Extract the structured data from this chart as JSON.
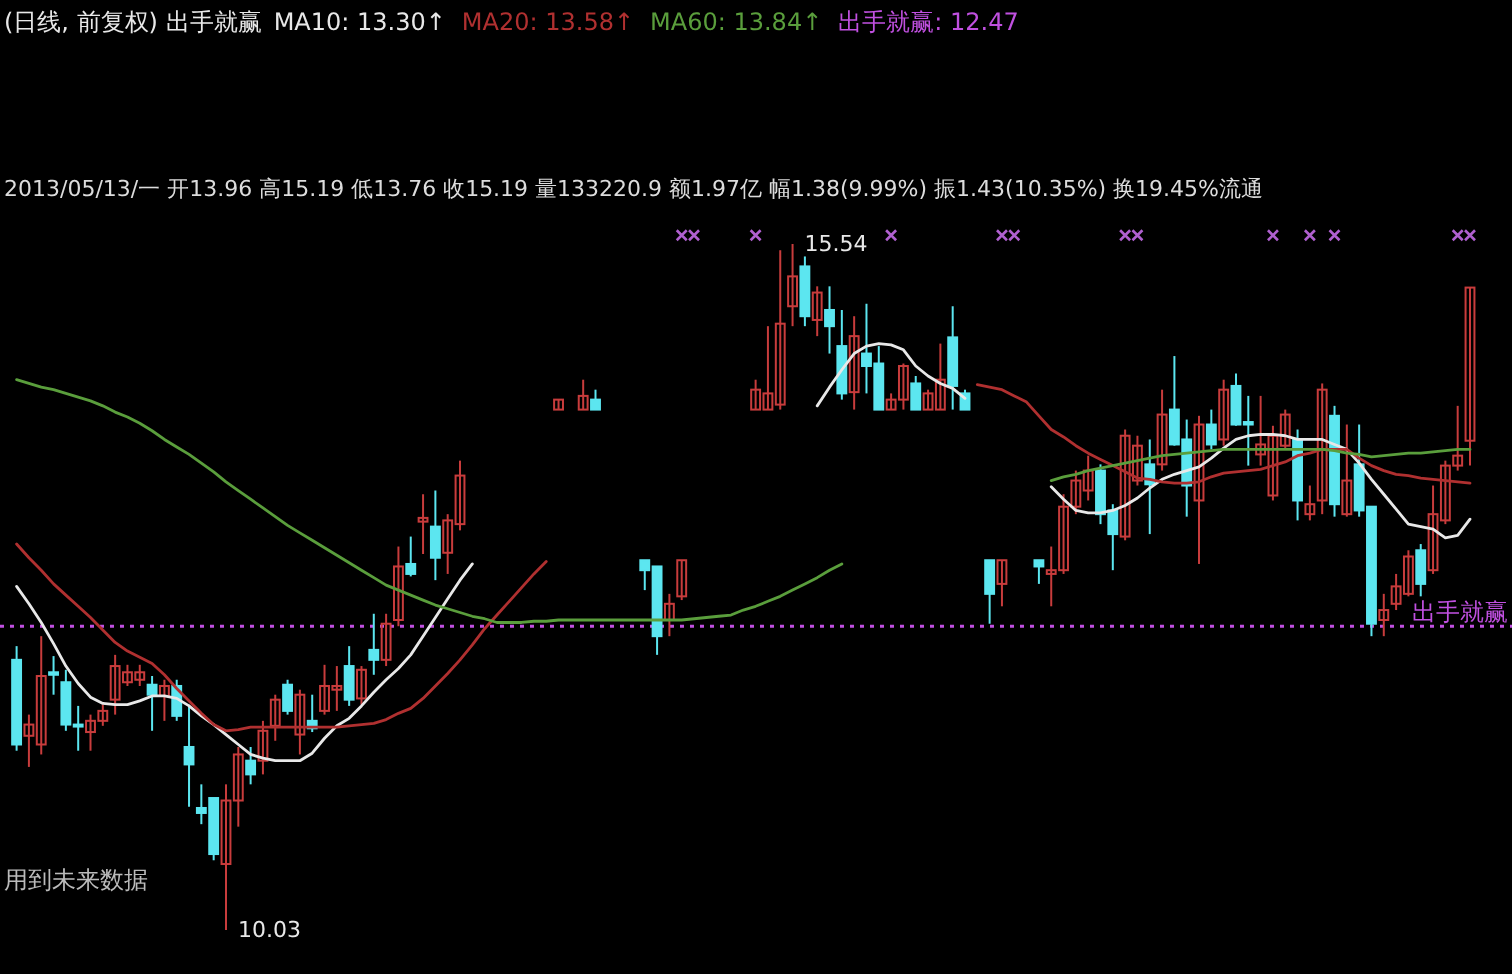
{
  "chart_data": {
    "type": "candlestick",
    "title": "(日线, 前复权) 出手就赢",
    "subtitle": "2013/05/13/一 开13.96 高15.19 低13.76 收15.19 量133220.9 额1.97亿 幅1.38(9.99%) 振1.43(10.35%) 换19.45%流通",
    "categories": [
      null,
      null,
      null,
      null,
      null,
      null,
      null,
      null,
      null,
      null,
      null,
      null,
      null,
      null,
      null,
      null,
      null,
      null,
      null,
      null,
      null,
      null,
      null,
      null,
      null,
      null,
      null,
      null,
      null,
      null,
      null,
      null,
      null,
      null,
      null,
      null,
      null,
      null,
      null,
      null,
      null,
      null,
      null,
      null,
      null,
      null,
      null,
      null,
      null,
      null,
      null,
      null,
      null,
      null,
      null,
      null,
      null,
      null,
      null,
      null,
      null,
      null,
      null,
      null,
      null,
      null,
      null,
      null,
      null,
      null,
      null,
      null,
      null,
      null,
      null,
      null,
      null,
      null,
      null,
      null,
      null,
      null,
      null,
      null,
      null,
      null,
      null,
      null,
      null,
      null,
      null,
      null,
      null,
      null,
      null,
      null,
      null,
      null,
      null,
      null,
      null,
      null,
      null,
      null,
      null,
      null,
      null,
      null,
      null,
      null,
      null,
      null,
      null,
      null,
      null,
      null,
      null,
      null,
      null
    ],
    "ohlc": [
      [
        12.2,
        12.31,
        11.47,
        11.52
      ],
      [
        11.59,
        11.76,
        11.34,
        11.68
      ],
      [
        11.52,
        12.39,
        11.44,
        12.07
      ],
      [
        12.1,
        12.23,
        11.92,
        12.08
      ],
      [
        12.02,
        12.12,
        11.63,
        11.68
      ],
      [
        11.68,
        11.83,
        11.47,
        11.67
      ],
      [
        11.62,
        11.76,
        11.47,
        11.71
      ],
      [
        11.71,
        11.84,
        11.67,
        11.79
      ],
      [
        11.88,
        12.24,
        11.76,
        12.15
      ],
      [
        12.02,
        12.16,
        11.99,
        12.1
      ],
      [
        12.04,
        12.16,
        11.99,
        12.1
      ],
      [
        12.0,
        12.07,
        11.63,
        11.92
      ],
      [
        11.91,
        12.04,
        11.71,
        11.99
      ],
      [
        11.99,
        12.04,
        11.71,
        11.75
      ],
      [
        11.5,
        11.84,
        11.02,
        11.36
      ],
      [
        11.01,
        11.2,
        10.88,
        10.97
      ],
      [
        11.09,
        11.09,
        10.59,
        10.64
      ],
      [
        10.56,
        11.2,
        10.03,
        11.07
      ],
      [
        11.07,
        11.5,
        10.86,
        11.44
      ],
      [
        11.39,
        11.5,
        11.2,
        11.28
      ],
      [
        11.39,
        11.71,
        11.28,
        11.63
      ],
      [
        11.67,
        11.92,
        11.55,
        11.88
      ],
      [
        12.0,
        12.04,
        11.76,
        11.79
      ],
      [
        11.6,
        11.96,
        11.44,
        11.92
      ],
      [
        11.71,
        11.92,
        11.62,
        11.65
      ],
      [
        11.79,
        12.16,
        11.76,
        11.99
      ],
      [
        11.96,
        12.15,
        11.79,
        11.99
      ],
      [
        12.15,
        12.31,
        11.83,
        11.88
      ],
      [
        11.89,
        12.15,
        11.84,
        12.12
      ],
      [
        12.28,
        12.57,
        12.08,
        12.2
      ],
      [
        12.2,
        12.57,
        12.15,
        12.49
      ],
      [
        12.52,
        13.11,
        12.47,
        12.95
      ],
      [
        12.97,
        13.19,
        12.87,
        12.89
      ],
      [
        13.31,
        13.53,
        13.05,
        13.34
      ],
      [
        13.27,
        13.56,
        12.84,
        13.02
      ],
      [
        13.06,
        13.37,
        12.89,
        13.32
      ],
      [
        13.29,
        13.8,
        13.24,
        13.68
      ],
      null,
      null,
      null,
      null,
      null,
      null,
      null,
      [
        14.21,
        14.29,
        14.21,
        14.29
      ],
      null,
      [
        14.21,
        14.45,
        14.21,
        14.32
      ],
      [
        14.29,
        14.37,
        14.21,
        14.21
      ],
      null,
      null,
      null,
      [
        13.0,
        13.0,
        12.76,
        12.92
      ],
      [
        12.95,
        12.95,
        12.24,
        12.39
      ],
      [
        12.52,
        12.73,
        12.39,
        12.65
      ],
      [
        12.71,
        13.0,
        12.68,
        13.0
      ],
      null,
      null,
      null,
      null,
      null,
      [
        14.21,
        14.45,
        14.21,
        14.37
      ],
      [
        14.21,
        14.88,
        14.21,
        14.34
      ],
      [
        14.25,
        15.49,
        14.21,
        14.9
      ],
      [
        15.04,
        15.54,
        14.88,
        15.28
      ],
      [
        15.36,
        15.44,
        14.88,
        14.96
      ],
      [
        14.93,
        15.2,
        14.8,
        15.15
      ],
      [
        15.01,
        15.2,
        14.66,
        14.88
      ],
      [
        14.72,
        15.01,
        14.29,
        14.34
      ],
      [
        14.35,
        14.96,
        14.21,
        14.8
      ],
      [
        14.66,
        15.06,
        14.34,
        14.56
      ],
      [
        14.58,
        14.72,
        14.21,
        14.21
      ],
      [
        14.21,
        14.34,
        14.21,
        14.29
      ],
      [
        14.29,
        14.58,
        14.21,
        14.56
      ],
      [
        14.42,
        14.48,
        14.21,
        14.21
      ],
      [
        14.21,
        14.37,
        14.21,
        14.34
      ],
      [
        14.21,
        14.74,
        14.21,
        14.45
      ],
      [
        14.79,
        15.04,
        14.21,
        14.4
      ],
      [
        14.34,
        14.37,
        14.21,
        14.21
      ],
      null,
      [
        13.0,
        13.0,
        12.49,
        12.73
      ],
      [
        12.81,
        13.0,
        12.63,
        13.0
      ],
      null,
      null,
      [
        13.0,
        13.0,
        12.81,
        12.95
      ],
      [
        12.89,
        13.11,
        12.63,
        12.92
      ],
      [
        12.92,
        13.53,
        12.89,
        13.43
      ],
      [
        13.43,
        13.72,
        13.37,
        13.64
      ],
      [
        13.56,
        13.84,
        13.48,
        13.72
      ],
      [
        13.72,
        13.77,
        13.29,
        13.37
      ],
      [
        13.4,
        13.45,
        12.92,
        13.21
      ],
      [
        13.19,
        14.05,
        13.16,
        14.0
      ],
      [
        13.64,
        14.0,
        13.6,
        13.92
      ],
      [
        13.77,
        13.97,
        13.21,
        13.61
      ],
      [
        13.77,
        14.37,
        13.72,
        14.17
      ],
      [
        14.21,
        14.64,
        13.92,
        13.93
      ],
      [
        13.97,
        14.13,
        13.35,
        13.6
      ],
      [
        13.48,
        14.16,
        12.97,
        14.09
      ],
      [
        14.09,
        14.21,
        13.89,
        13.93
      ],
      [
        13.97,
        14.45,
        13.92,
        14.37
      ],
      [
        14.4,
        14.5,
        14.08,
        14.09
      ],
      [
        14.11,
        14.32,
        13.76,
        14.09
      ],
      [
        13.85,
        14.32,
        13.76,
        13.93
      ],
      [
        13.52,
        14.08,
        13.48,
        14.0
      ],
      [
        13.92,
        14.21,
        13.89,
        14.17
      ],
      [
        13.97,
        14.05,
        13.32,
        13.48
      ],
      [
        13.37,
        13.6,
        13.32,
        13.45
      ],
      [
        13.48,
        14.42,
        13.37,
        14.37
      ],
      [
        14.16,
        14.24,
        13.35,
        13.45
      ],
      [
        13.37,
        14.09,
        13.35,
        13.64
      ],
      [
        13.77,
        14.09,
        13.35,
        13.4
      ],
      [
        13.43,
        13.43,
        12.39,
        12.49
      ],
      [
        12.52,
        12.73,
        12.39,
        12.6
      ],
      [
        12.65,
        12.89,
        12.6,
        12.79
      ],
      [
        12.73,
        13.08,
        12.71,
        13.03
      ],
      [
        13.08,
        13.13,
        12.71,
        12.81
      ],
      [
        12.92,
        13.6,
        12.89,
        13.37
      ],
      [
        13.32,
        13.8,
        13.29,
        13.76
      ],
      [
        13.76,
        14.24,
        13.72,
        13.84
      ],
      [
        13.96,
        15.19,
        13.76,
        15.19
      ]
    ],
    "colors": [
      "#5ce6f0",
      "#c83c3c",
      "#c83c3c",
      "#5ce6f0",
      "#5ce6f0",
      "#5ce6f0",
      "#c83c3c",
      "#c83c3c",
      "#c83c3c",
      "#c83c3c",
      "#c83c3c",
      "#5ce6f0",
      "#c83c3c",
      "#5ce6f0",
      "#5ce6f0",
      "#5ce6f0",
      "#5ce6f0",
      "#c83c3c",
      "#c83c3c",
      "#5ce6f0",
      "#c83c3c",
      "#c83c3c",
      "#5ce6f0",
      "#c83c3c",
      "#5ce6f0",
      "#c83c3c",
      "#c83c3c",
      "#5ce6f0",
      "#c83c3c",
      "#5ce6f0",
      "#c83c3c",
      "#c83c3c",
      "#5ce6f0",
      "#c83c3c",
      "#5ce6f0",
      "#c83c3c",
      "#c83c3c",
      null,
      null,
      null,
      null,
      null,
      null,
      null,
      "#c83c3c",
      null,
      "#c83c3c",
      "#5ce6f0",
      null,
      null,
      null,
      "#5ce6f0",
      "#5ce6f0",
      "#c83c3c",
      "#c83c3c",
      null,
      null,
      null,
      null,
      null,
      "#c83c3c",
      "#c83c3c",
      "#c83c3c",
      "#c83c3c",
      "#5ce6f0",
      "#c83c3c",
      "#5ce6f0",
      "#5ce6f0",
      "#c83c3c",
      "#5ce6f0",
      "#5ce6f0",
      "#c83c3c",
      "#c83c3c",
      "#5ce6f0",
      "#c83c3c",
      "#c83c3c",
      "#5ce6f0",
      "#5ce6f0",
      null,
      "#5ce6f0",
      "#c83c3c",
      null,
      null,
      "#5ce6f0",
      "#c83c3c",
      "#c83c3c",
      "#c83c3c",
      "#c83c3c",
      "#5ce6f0",
      "#5ce6f0",
      "#c83c3c",
      "#c83c3c",
      "#5ce6f0",
      "#c83c3c",
      "#5ce6f0",
      "#5ce6f0",
      "#c83c3c",
      "#5ce6f0",
      "#c83c3c",
      "#5ce6f0",
      "#5ce6f0",
      "#c83c3c",
      "#c83c3c",
      "#c83c3c",
      "#5ce6f0",
      "#c83c3c",
      "#c83c3c",
      "#5ce6f0",
      "#c83c3c",
      "#5ce6f0",
      "#5ce6f0",
      "#c83c3c",
      "#c83c3c",
      "#c83c3c",
      "#5ce6f0",
      "#c83c3c",
      "#c83c3c",
      "#c83c3c",
      "#c83c3c"
    ],
    "series": [
      {
        "name": "MA10: 13.30↑",
        "type": "line",
        "color": "#e8e8e8",
        "values": [
          12.79,
          12.65,
          12.5,
          12.33,
          12.15,
          12.01,
          11.9,
          11.85,
          11.84,
          11.84,
          11.87,
          11.91,
          11.91,
          11.89,
          11.83,
          11.75,
          11.68,
          11.6,
          11.52,
          11.44,
          11.41,
          11.39,
          11.39,
          11.39,
          11.45,
          11.57,
          11.67,
          11.73,
          11.83,
          11.94,
          12.04,
          12.13,
          12.24,
          12.39,
          12.54,
          12.69,
          12.84,
          12.97,
          null,
          null,
          null,
          null,
          null,
          null,
          null,
          null,
          null,
          null,
          null,
          null,
          null,
          null,
          null,
          null,
          null,
          null,
          null,
          null,
          null,
          null,
          null,
          null,
          null,
          null,
          null,
          14.24,
          14.39,
          14.53,
          14.66,
          14.72,
          14.74,
          14.73,
          14.69,
          14.56,
          14.48,
          14.42,
          14.38,
          14.3,
          null,
          null,
          null,
          null,
          null,
          null,
          13.59,
          13.49,
          13.4,
          13.38,
          13.38,
          13.4,
          13.44,
          13.5,
          13.58,
          13.65,
          13.69,
          13.72,
          13.75,
          13.82,
          13.9,
          13.97,
          14.0,
          14.01,
          14.01,
          14.0,
          13.97,
          13.97,
          13.97,
          13.93,
          13.89,
          13.78,
          13.65,
          13.53,
          13.41,
          13.29,
          13.27,
          13.25,
          13.18,
          13.2,
          13.33
        ]
      },
      {
        "name": "MA20: 13.58↑",
        "type": "line",
        "color": "#b03030",
        "values": [
          13.13,
          13.02,
          12.92,
          12.81,
          12.72,
          12.63,
          12.54,
          12.44,
          12.34,
          12.27,
          12.22,
          12.17,
          12.08,
          11.97,
          11.87,
          11.77,
          11.68,
          11.63,
          11.64,
          11.66,
          11.66,
          11.66,
          11.66,
          11.66,
          11.66,
          11.66,
          11.66,
          11.67,
          11.68,
          11.69,
          11.72,
          11.77,
          11.81,
          11.89,
          11.99,
          12.09,
          12.2,
          12.32,
          12.45,
          12.56,
          12.67,
          12.78,
          12.89,
          12.99,
          null,
          null,
          null,
          null,
          null,
          null,
          null,
          null,
          null,
          null,
          null,
          null,
          null,
          null,
          null,
          null,
          null,
          null,
          null,
          null,
          null,
          null,
          null,
          null,
          null,
          null,
          null,
          null,
          null,
          null,
          null,
          null,
          null,
          null,
          14.41,
          14.39,
          14.37,
          14.32,
          14.27,
          14.16,
          14.05,
          13.99,
          13.92,
          13.86,
          13.81,
          13.76,
          13.71,
          13.66,
          13.65,
          13.63,
          13.62,
          13.62,
          13.63,
          13.67,
          13.7,
          13.71,
          13.72,
          13.73,
          13.76,
          13.79,
          13.84,
          13.86,
          13.89,
          13.89,
          13.89,
          13.82,
          13.76,
          13.72,
          13.69,
          13.68,
          13.66,
          13.65,
          13.64,
          13.63,
          13.62
        ]
      },
      {
        "name": "MA60: 13.84↑",
        "type": "line",
        "color": "#5a9e3c",
        "values": [
          14.45,
          14.42,
          14.39,
          14.37,
          14.34,
          14.31,
          14.28,
          14.24,
          14.19,
          14.15,
          14.1,
          14.04,
          13.97,
          13.91,
          13.85,
          13.78,
          13.71,
          13.63,
          13.56,
          13.49,
          13.42,
          13.35,
          13.28,
          13.22,
          13.16,
          13.1,
          13.04,
          12.98,
          12.92,
          12.86,
          12.8,
          12.76,
          12.72,
          12.68,
          12.64,
          12.61,
          12.58,
          12.55,
          12.53,
          12.5,
          12.5,
          12.5,
          12.51,
          12.51,
          12.52,
          12.52,
          12.52,
          12.52,
          12.52,
          12.52,
          12.52,
          12.52,
          12.52,
          12.52,
          12.52,
          12.53,
          12.54,
          12.55,
          12.56,
          12.6,
          12.63,
          12.67,
          12.71,
          12.76,
          12.81,
          12.86,
          12.92,
          12.97,
          null,
          null,
          null,
          null,
          null,
          null,
          null,
          null,
          null,
          null,
          null,
          null,
          null,
          null,
          null,
          null,
          13.64,
          13.67,
          13.69,
          13.72,
          13.74,
          13.76,
          13.78,
          13.8,
          13.82,
          13.84,
          13.85,
          13.86,
          13.87,
          13.88,
          13.89,
          13.89,
          13.89,
          13.89,
          13.89,
          13.89,
          13.89,
          13.89,
          13.89,
          13.88,
          13.86,
          13.85,
          13.83,
          13.84,
          13.85,
          13.86,
          13.86,
          13.87,
          13.88,
          13.89,
          13.89
        ]
      },
      {
        "type": "scatter",
        "color": "#b060d0",
        "marker": "cross",
        "values": [
          null,
          null,
          null,
          null,
          null,
          null,
          null,
          null,
          null,
          null,
          null,
          null,
          null,
          null,
          null,
          null,
          null,
          null,
          null,
          null,
          null,
          null,
          null,
          null,
          null,
          null,
          null,
          null,
          null,
          null,
          null,
          null,
          null,
          null,
          null,
          null,
          null,
          null,
          null,
          null,
          null,
          null,
          null,
          null,
          null,
          null,
          null,
          null,
          null,
          null,
          null,
          null,
          null,
          null,
          15.61,
          15.61,
          null,
          null,
          null,
          null,
          15.61,
          null,
          null,
          null,
          null,
          null,
          null,
          null,
          null,
          null,
          null,
          15.61,
          null,
          null,
          null,
          null,
          null,
          null,
          null,
          null,
          15.61,
          15.61,
          null,
          null,
          null,
          null,
          null,
          null,
          null,
          null,
          15.61,
          15.61,
          null,
          null,
          null,
          null,
          null,
          null,
          null,
          null,
          null,
          null,
          15.61,
          null,
          null,
          15.61,
          null,
          15.61,
          null,
          null,
          null,
          null,
          null,
          null,
          null,
          null,
          null,
          15.61,
          15.61
        ]
      }
    ],
    "ref_lines": [
      {
        "axis": "y",
        "value": 12.47,
        "label": "出手就赢",
        "color": "#c050e0",
        "line_style": "dotted"
      }
    ],
    "annotations": [
      "出手就赢: 12.47",
      "15.54",
      "10.03",
      "用到未来数据"
    ],
    "legend": "top"
  }
}
